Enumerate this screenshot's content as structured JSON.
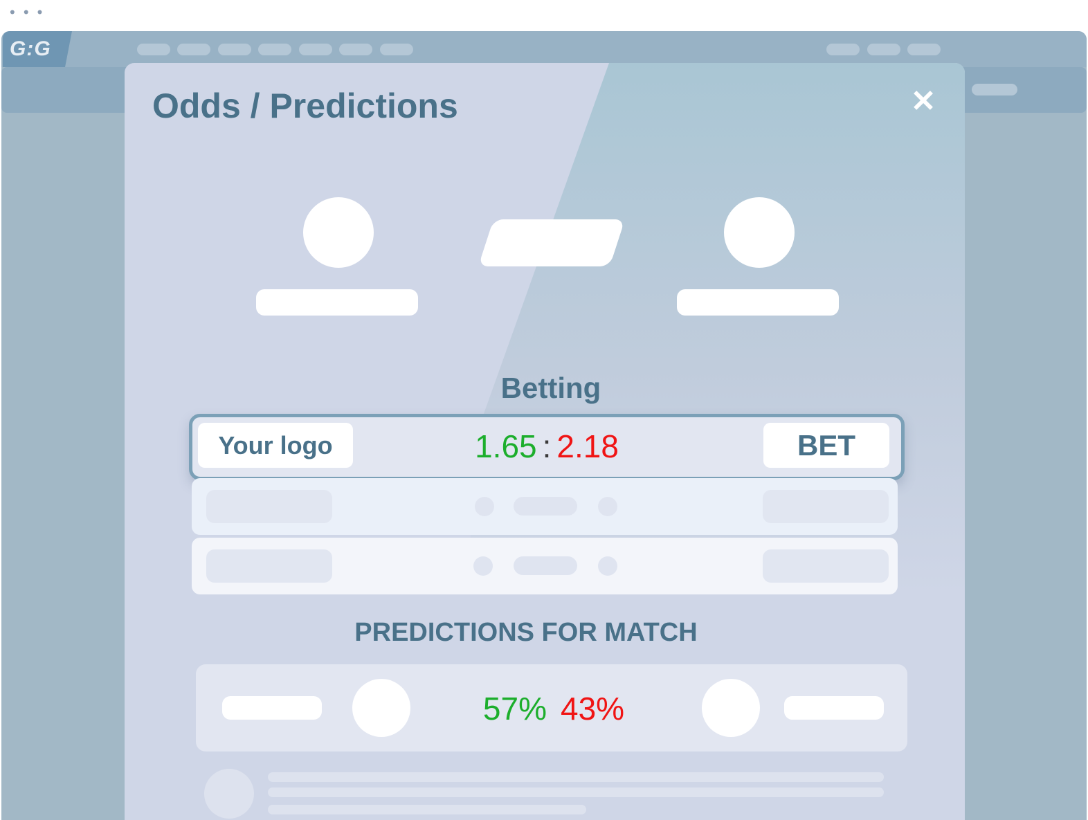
{
  "window": {
    "dots": "• • •"
  },
  "site": {
    "logo_text": "G:G"
  },
  "modal": {
    "title": "Odds / Predictions",
    "close_icon": "close-icon",
    "betting": {
      "title": "Betting",
      "logo_label": "Your logo",
      "odds_home": "1.65",
      "odds_separator": ":",
      "odds_away": "2.18",
      "bet_label": "BET"
    },
    "predictions": {
      "title": "PREDICTIONS FOR MATCH",
      "home_percent": "57%",
      "away_percent": "43%"
    }
  },
  "colors": {
    "accent": "#497189",
    "positive": "#1cae2c",
    "negative": "#f01414",
    "modal_bg": "#cfd6e7",
    "page_bg": "#a2b8c6"
  }
}
